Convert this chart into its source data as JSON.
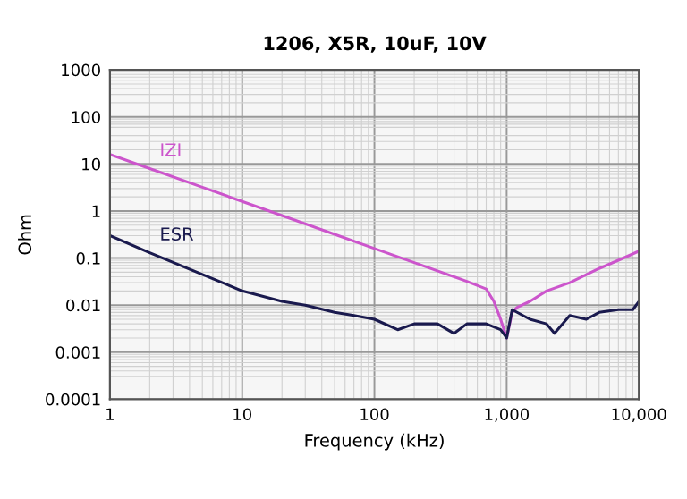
{
  "chart_data": {
    "type": "line",
    "title": "1206, X5R, 10uF, 10V",
    "xlabel": "Frequency (kHz)",
    "ylabel": "Ohm",
    "log": "xy",
    "grid": true,
    "legend": false,
    "marker": "none",
    "line_style": "solid",
    "xlim": [
      1,
      10000
    ],
    "ylim": [
      0.0001,
      1000
    ],
    "xticks": [
      1,
      10,
      100,
      {
        "value": 1000,
        "label": "1,000"
      },
      {
        "value": 10000,
        "label": "10,000"
      }
    ],
    "yticks": [
      0.0001,
      0.001,
      0.01,
      0.1,
      1,
      10,
      100,
      1000
    ],
    "series": [
      {
        "name": "IZI",
        "color": "#cc55cc",
        "x": [
          1,
          2,
          5,
          10,
          20,
          50,
          100,
          200,
          500,
          700,
          800,
          900,
          1000,
          1100,
          1200,
          1500,
          2000,
          3000,
          5000,
          7000,
          10000
        ],
        "values": [
          15.9,
          8,
          3.2,
          1.6,
          0.8,
          0.32,
          0.16,
          0.08,
          0.032,
          0.022,
          0.012,
          0.005,
          0.002,
          0.007,
          0.009,
          0.012,
          0.02,
          0.03,
          0.06,
          0.09,
          0.14
        ]
      },
      {
        "name": "ESR",
        "color": "#1a1a4e",
        "x": [
          1,
          2,
          5,
          10,
          20,
          30,
          50,
          70,
          100,
          150,
          200,
          300,
          400,
          500,
          700,
          900,
          1000,
          1100,
          1500,
          2000,
          2300,
          3000,
          4000,
          5000,
          7000,
          9000,
          10000
        ],
        "values": [
          0.3,
          0.13,
          0.045,
          0.02,
          0.012,
          0.01,
          0.007,
          0.006,
          0.005,
          0.003,
          0.004,
          0.004,
          0.0025,
          0.004,
          0.004,
          0.003,
          0.002,
          0.008,
          0.005,
          0.004,
          0.0025,
          0.006,
          0.005,
          0.007,
          0.008,
          0.008,
          0.012
        ]
      }
    ]
  }
}
